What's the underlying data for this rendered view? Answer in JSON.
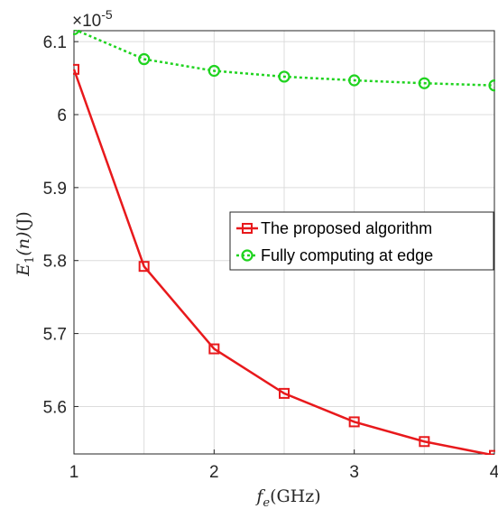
{
  "chart_data": {
    "type": "line",
    "title": "",
    "xlabel": "f_e(GHz)",
    "ylabel": "E_1(n)(J)",
    "y_multiplier": "×10",
    "y_multiplier_exponent": "-5",
    "xlim": [
      1,
      4
    ],
    "ylim": [
      5.535,
      6.115
    ],
    "x_ticks": [
      1,
      2,
      3,
      4
    ],
    "x_tick_labels": [
      "1",
      "2",
      "3",
      "4"
    ],
    "y_ticks": [
      5.6,
      5.7,
      5.8,
      5.9,
      6.0,
      6.1
    ],
    "y_tick_labels": [
      "5.6",
      "5.7",
      "5.8",
      "5.9",
      "6",
      "6.1"
    ],
    "grid": true,
    "legend_position": "right",
    "x": [
      1,
      1.5,
      2,
      2.5,
      3,
      3.5,
      4
    ],
    "series": [
      {
        "name": "The proposed algorithm",
        "values": [
          6.062,
          5.792,
          5.679,
          5.618,
          5.579,
          5.552,
          5.533
        ],
        "color": "#e8191c",
        "marker": "square",
        "line_style": "solid"
      },
      {
        "name": "Fully computing at edge",
        "values": [
          6.117,
          6.076,
          6.06,
          6.052,
          6.047,
          6.043,
          6.04
        ],
        "color": "#1fd31f",
        "marker": "circle",
        "line_style": "dotted"
      }
    ]
  }
}
